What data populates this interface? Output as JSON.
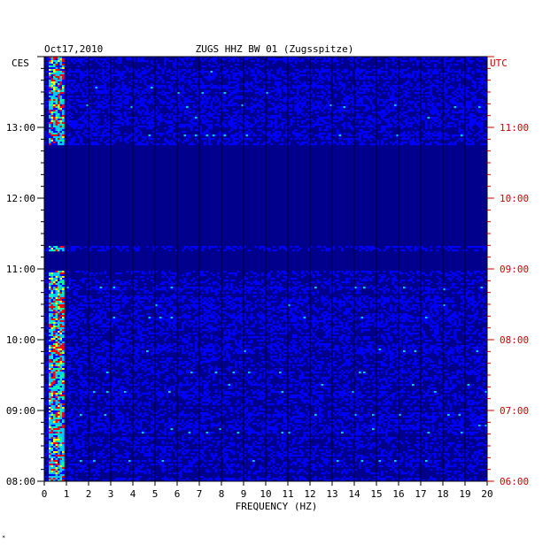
{
  "chart_data": {
    "type": "heatmap",
    "date": "Oct17,2010",
    "station": "ZUGS HHZ BW 01 (Zugsspitze)",
    "xlabel": "FREQUENCY (HZ)",
    "xlim": [
      0,
      20
    ],
    "x_ticks": [
      "0",
      "1",
      "2",
      "3",
      "4",
      "5",
      "6",
      "7",
      "8",
      "9",
      "10",
      "11",
      "12",
      "13",
      "14",
      "15",
      "16",
      "17",
      "18",
      "19",
      "20"
    ],
    "left_axis_label": "CES",
    "right_axis_label": "UTC",
    "left_time_ticks": [
      "13:00",
      "12:00",
      "11:00",
      "10:00",
      "09:00",
      "08:00"
    ],
    "right_time_ticks": [
      "11:00",
      "10:00",
      "09:00",
      "08:00",
      "07:00",
      "06:00"
    ],
    "time_range_ces": [
      "08:00",
      "14:00"
    ],
    "colormap": [
      "#00008c",
      "#0000ff",
      "#00c8ff",
      "#00ffa0",
      "#ffff00",
      "#ff0000"
    ],
    "quiet_periods_ces": [
      [
        "11:20",
        "12:45"
      ],
      [
        "11:00",
        "11:15"
      ]
    ],
    "strong_band_hz": [
      0.2,
      0.8
    ],
    "grid": true,
    "footnote": "*"
  }
}
